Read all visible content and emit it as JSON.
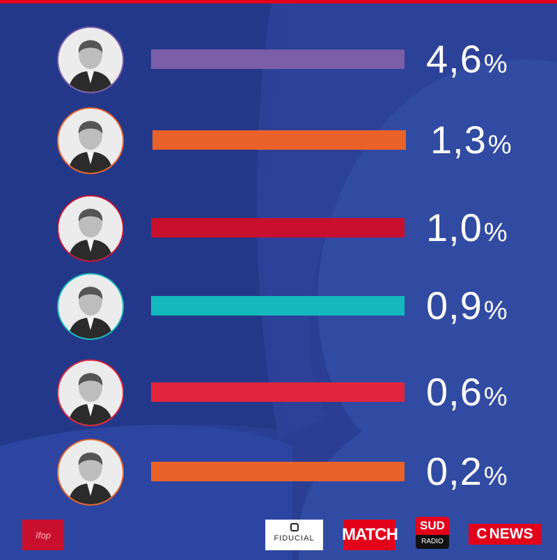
{
  "chart_data": {
    "type": "bar",
    "orientation": "horizontal",
    "values": [
      4.6,
      1.3,
      1.0,
      0.9,
      0.6,
      0.2
    ],
    "value_labels": [
      "4,6",
      "1,3",
      "1,0",
      "0,9",
      "0,6",
      "0,2"
    ],
    "unit": "%",
    "bar_colors": [
      "#7b5ea8",
      "#e9622a",
      "#c8102e",
      "#13b9bd",
      "#e2243c",
      "#e9622a"
    ],
    "ring_colors": [
      "#7b5ea8",
      "#e9622a",
      "#c8102e",
      "#13b9bd",
      "#e2243c",
      "#e9622a"
    ],
    "grid": false,
    "legend": "none"
  },
  "icons": [
    "portrait-photo-icon"
  ],
  "logos": {
    "ifop": "Ifop",
    "fiducial": "FIDUCIAL",
    "match": "MATCH",
    "sud_top": "SUD",
    "sud_bottom": "RADIO",
    "cnews_c": "C",
    "cnews_text": "NEWS"
  },
  "colors": {
    "background": "#2a3f94",
    "top_bar": "#e3001b"
  }
}
